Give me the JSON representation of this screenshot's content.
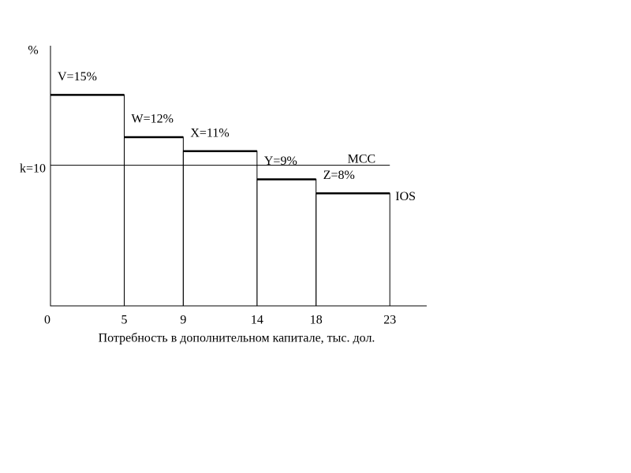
{
  "chart_data": {
    "type": "histogram",
    "y_label": "%",
    "x_label": "Потребность в дополнительном капитале, тыс. дол.",
    "bins": [
      0,
      5,
      9,
      14,
      18,
      23
    ],
    "series": [
      {
        "name": "IOS",
        "color": "#000000",
        "values": [
          15,
          12,
          11,
          9,
          8
        ],
        "value_labels": [
          "V=15%",
          "W=12%",
          "X=11%",
          "Y=9%",
          "Z=8%"
        ]
      }
    ],
    "hlines": [
      {
        "name": "MCC",
        "value": 10,
        "color": "#000000"
      }
    ],
    "xlim": [
      0,
      25.5
    ],
    "ylim": [
      0,
      18.5
    ],
    "xticks": [
      0,
      5,
      9,
      14,
      18,
      23
    ],
    "yticks": [
      {
        "value": 10,
        "label": "k=10"
      }
    ]
  }
}
